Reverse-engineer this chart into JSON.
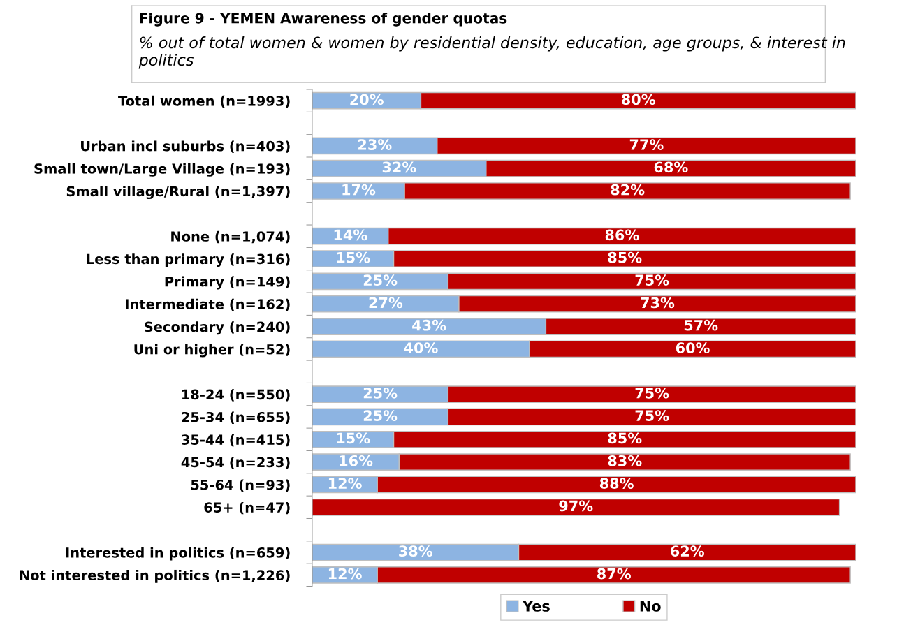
{
  "chart_data": {
    "type": "bar",
    "orientation": "horizontal",
    "stacked": true,
    "title": "Figure 9 - YEMEN Awareness of gender quotas",
    "subtitle": "% out of total women & women by residential density, education, age groups, & interest in politics",
    "categories": [
      "Total women (n=1993)",
      null,
      "Urban incl suburbs (n=403)",
      "Small town/Large Village (n=193)",
      "Small village/Rural (n=1,397)",
      null,
      "None (n=1,074)",
      "Less than primary (n=316)",
      "Primary (n=149)",
      "Intermediate (n=162)",
      "Secondary (n=240)",
      "Uni or higher (n=52)",
      null,
      "18-24 (n=550)",
      "25-34 (n=655)",
      "35-44 (n=415)",
      "45-54 (n=233)",
      "55-64 (n=93)",
      "65+ (n=47)",
      null,
      "Interested in politics (n=659)",
      "Not interested in politics (n=1,226)"
    ],
    "series": [
      {
        "name": "Yes",
        "color": "#8db4e2",
        "values": [
          20,
          null,
          23,
          32,
          17,
          null,
          14,
          15,
          25,
          27,
          43,
          40,
          null,
          25,
          25,
          15,
          16,
          12,
          null,
          null,
          38,
          12
        ],
        "value_labels": [
          "20%",
          null,
          "23%",
          "32%",
          "17%",
          null,
          "14%",
          "15%",
          "25%",
          "27%",
          "43%",
          "40%",
          null,
          "25%",
          "25%",
          "15%",
          "16%",
          "12%",
          null,
          null,
          "38%",
          "12%"
        ]
      },
      {
        "name": "No",
        "color": "#c00000",
        "values": [
          80,
          null,
          77,
          68,
          82,
          null,
          86,
          85,
          75,
          73,
          57,
          60,
          null,
          75,
          75,
          85,
          83,
          88,
          97,
          null,
          62,
          87
        ],
        "value_labels": [
          "80%",
          null,
          "77%",
          "68%",
          "82%",
          null,
          "86%",
          "85%",
          "75%",
          "73%",
          "57%",
          "60%",
          null,
          "75%",
          "75%",
          "85%",
          "83%",
          "88%",
          "97%",
          null,
          "62%",
          "87%"
        ]
      }
    ],
    "xlim": [
      0,
      100
    ],
    "tick_labels": "y",
    "legend": "bottom",
    "grid": false
  }
}
